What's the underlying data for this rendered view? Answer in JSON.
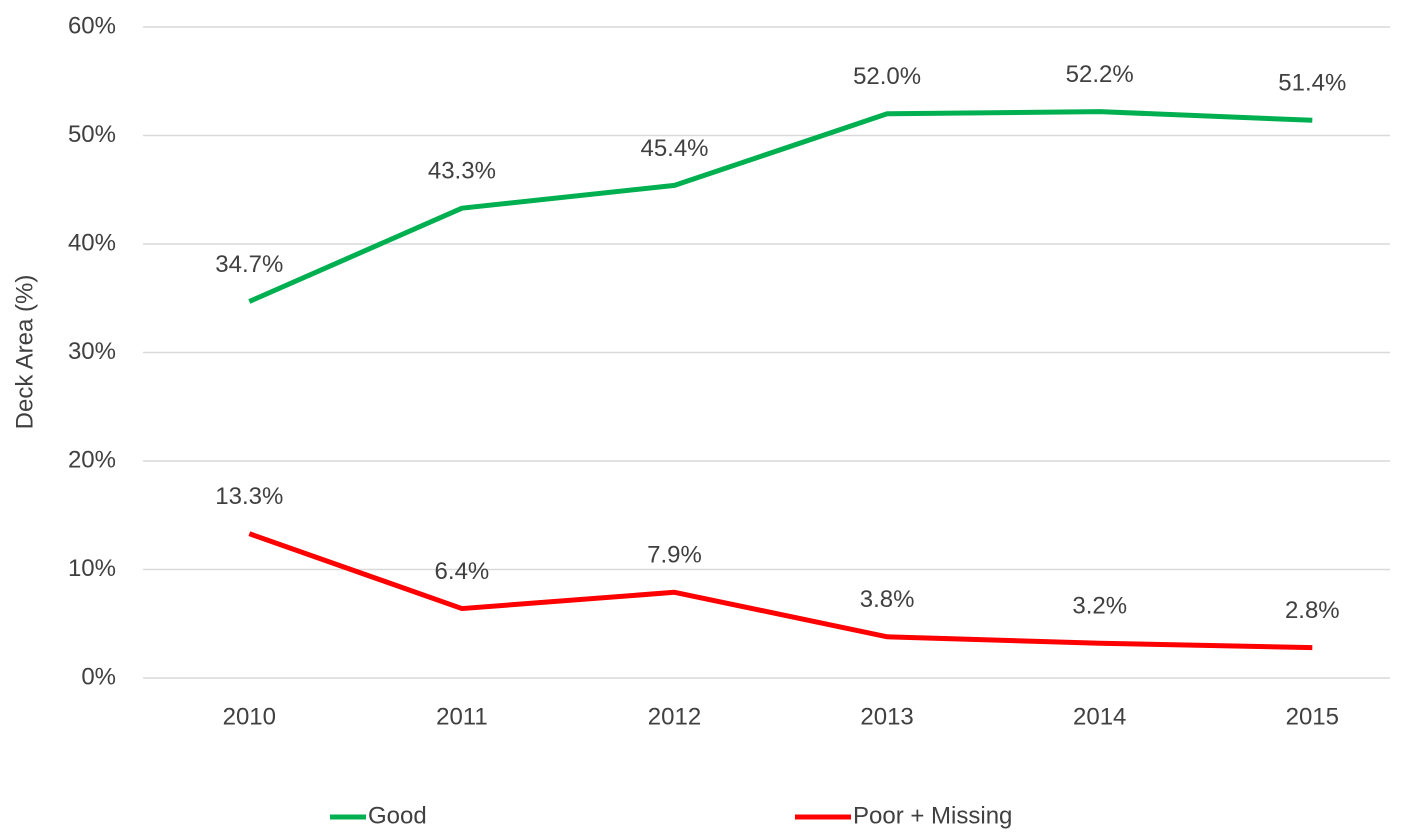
{
  "chart_data": {
    "type": "line",
    "y_label": "Deck Area (%)",
    "categories": [
      "2010",
      "2011",
      "2012",
      "2013",
      "2014",
      "2015"
    ],
    "series": [
      {
        "name": "Good",
        "color": "#00b050",
        "values": [
          34.7,
          43.3,
          45.4,
          52.0,
          52.2,
          51.4
        ],
        "value_labels": [
          "34.7%",
          "43.3%",
          "45.4%",
          "52.0%",
          "52.2%",
          "51.4%"
        ]
      },
      {
        "name": "Poor + Missing",
        "color": "#ff0000",
        "values": [
          13.3,
          6.4,
          7.9,
          3.8,
          3.2,
          2.8
        ],
        "value_labels": [
          "13.3%",
          "6.4%",
          "7.9%",
          "3.8%",
          "3.2%",
          "2.8%"
        ]
      }
    ],
    "ylim": [
      0,
      60
    ],
    "yticks": [
      {
        "value": 0,
        "label": "0%"
      },
      {
        "value": 10,
        "label": "10%"
      },
      {
        "value": 20,
        "label": "20%"
      },
      {
        "value": 30,
        "label": "30%"
      },
      {
        "value": 40,
        "label": "40%"
      },
      {
        "value": 50,
        "label": "50%"
      },
      {
        "value": 60,
        "label": "60%"
      }
    ],
    "grid": true,
    "legend": "bottom"
  }
}
